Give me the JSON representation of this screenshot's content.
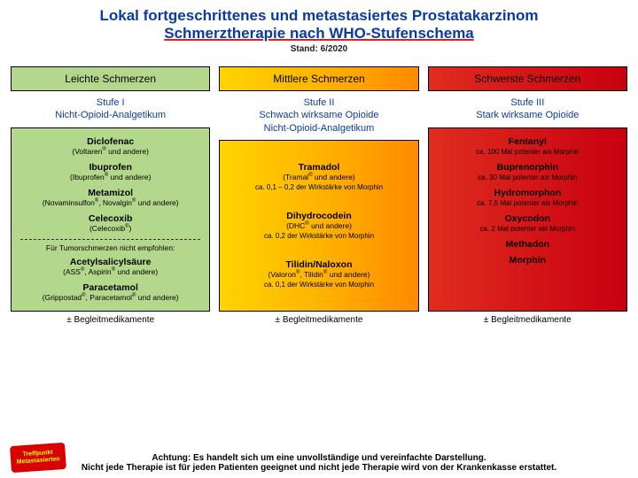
{
  "title": {
    "line1": "Lokal fortgeschrittenes und metastasiertes Prostatakarzinom",
    "line2": "Schmerztherapie nach WHO-Stufenschema",
    "stand": "Stand: 6/2020"
  },
  "columns": [
    {
      "header": "Leichte Schmerzen",
      "header_class": "h-green",
      "meds_class": "m-green",
      "stage_line1": "Stufe I",
      "stage_line2": "Nicht-Opioid-Analgetikum",
      "drugs_html": "<div class='drug'><b>Diclofenac</b><br><span class='sub'>(Voltaren<sup>®</sup> und andere)</span></div><div class='drug'><b>Ibuprofen</b><br><span class='sub'>(Ibuprofen<sup>®</sup> und andere)</span></div><div class='drug'><b>Metamizol</b><br><span class='sub'>(Novaminsulfon<sup>®</sup>, Novalgin<sup>®</sup> und andere)</span></div><div class='drug'><b>Celecoxib</b><br><span class='sub'>(Celecoxib<sup>®</sup>)</span></div><hr class='divider'><div class='notrec'>Für Tumorschmerzen nicht empfohlen:</div><div class='drug'><b>Acetylsalicylsäure</b><br><span class='sub'>(ASS<sup>®</sup>, Aspirin<sup>®</sup> und andere)</span></div><div class='drug'><b>Paracetamol</b><br><span class='sub'>(Grippostad<sup>®</sup>, Paracetamol<sup>®</sup> und andere)</span></div>",
      "begleit": "± Begleitmedikamente"
    },
    {
      "header": "Mittlere Schmerzen",
      "header_class": "h-yellow",
      "meds_class": "m-yellow",
      "stage_line1": "Stufe II",
      "stage_line2": "Schwach wirksame Opioide\nNicht-Opioid-Analgetikum",
      "drugs_html": "<div class='spacer'></div><div class='drug'><b>Tramadol</b><br><span class='sub'>(Tramal<sup>®</sup> und andere)</span><br><span class='sub2'>ca. 0,1 – 0,2 der Wirkstärke von Morphin</span></div><div class='spacer'></div><div class='drug'><b>Dihydrocodein</b><br><span class='sub'>(DHC<sup>®</sup> und andere)</span><br><span class='sub2'>ca. 0,2 der Wirkstärke von Morphin</span></div><div class='spacer'></div><div class='drug'><b>Tilidin/Naloxon</b><br><span class='sub'>(Valoron<sup>®</sup>, Tilidin<sup>®</sup> und andere)</span><br><span class='sub2'>ca. 0,1 der Wirkstärke von Morphin</span></div><div class='spacer'></div>",
      "begleit": "± Begleitmedikamente"
    },
    {
      "header": "Schwerste Schmerzen",
      "header_class": "h-red",
      "meds_class": "m-red",
      "stage_line1": "Stufe III",
      "stage_line2": "Stark wirksame Opioide",
      "drugs_html": "<div class='drug'><b>Fentanyl</b><br><span class='sub2'>ca. 100 Mal potenter als Morphin</span></div><div class='drug'><b>Buprenorphin</b><br><span class='sub2'>ca. 30 Mal potenter als Morphin</span></div><div class='drug'><b>Hydromorphon</b><br><span class='sub2'>ca. 7,5 Mal potenter als Morphin</span></div><div class='drug'><b>Oxycodon</b><br><span class='sub2'>ca. 2 Mal potenter als Morphin</span></div><div class='drug'><b>Methadon</b></div><div class='drug'><b>Morphin</b></div>",
      "begleit": "± Begleitmedikamente"
    }
  ],
  "footer": {
    "line1": "Achtung: Es handelt sich um eine unvollständige und vereinfachte Darstellung.",
    "line2": "Nicht jede Therapie ist für jeden Patienten geeignet und nicht jede Therapie wird von der Krankenkasse erstattet."
  },
  "logo_text": "Treffpunkt Metastasierten",
  "colors": {
    "blue": "#0b3aa2",
    "green": "#b4d88b",
    "yellow_grad": [
      "#ffd400",
      "#ff8a00"
    ],
    "red_grad": [
      "#e02c1f",
      "#c80010"
    ]
  }
}
